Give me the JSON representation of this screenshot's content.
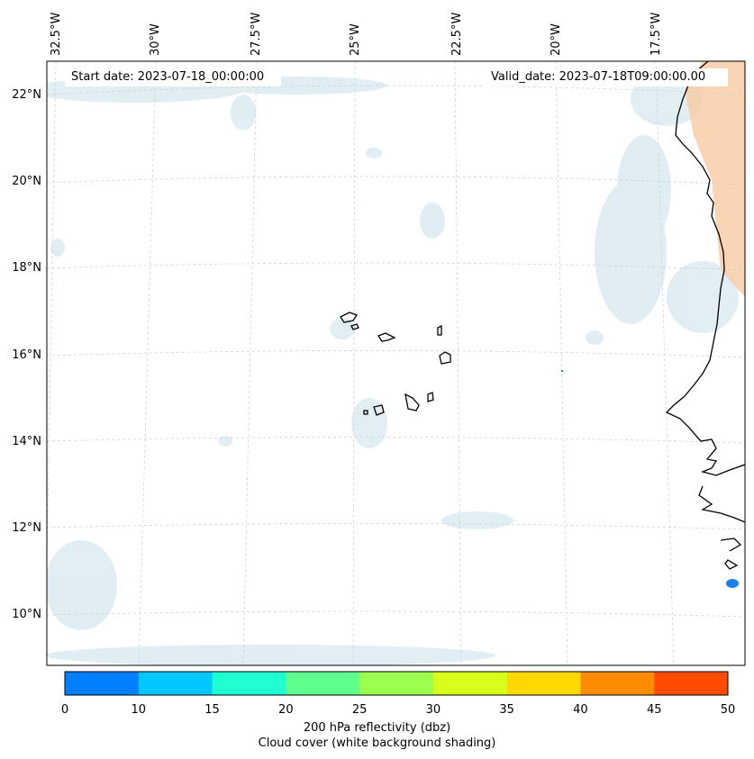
{
  "header": {
    "start_date": "Start date: 2023-07-18_00:00:00",
    "valid_date": "Valid_date: 2023-07-18T09:00:00.00"
  },
  "lon_labels": [
    "32.5°W",
    "30°W",
    "27.5°W",
    "25°W",
    "22.5°W",
    "20°W",
    "17.5°W"
  ],
  "lat_labels": [
    "22°N",
    "20°N",
    "18°N",
    "16°N",
    "14°N",
    "12°N",
    "10°N"
  ],
  "colorbar": {
    "ticks": [
      "0",
      "10",
      "15",
      "20",
      "25",
      "30",
      "35",
      "40",
      "45",
      "50"
    ],
    "colors": [
      "#0080ff",
      "#00c8ff",
      "#1effd2",
      "#5eff8c",
      "#9cff50",
      "#d8ff1c",
      "#ffd800",
      "#ff8c00",
      "#ff4c00"
    ],
    "label_line1": "200 hPa reflectivity (dbz)",
    "label_line2": "Cloud cover (white background shading)"
  }
}
